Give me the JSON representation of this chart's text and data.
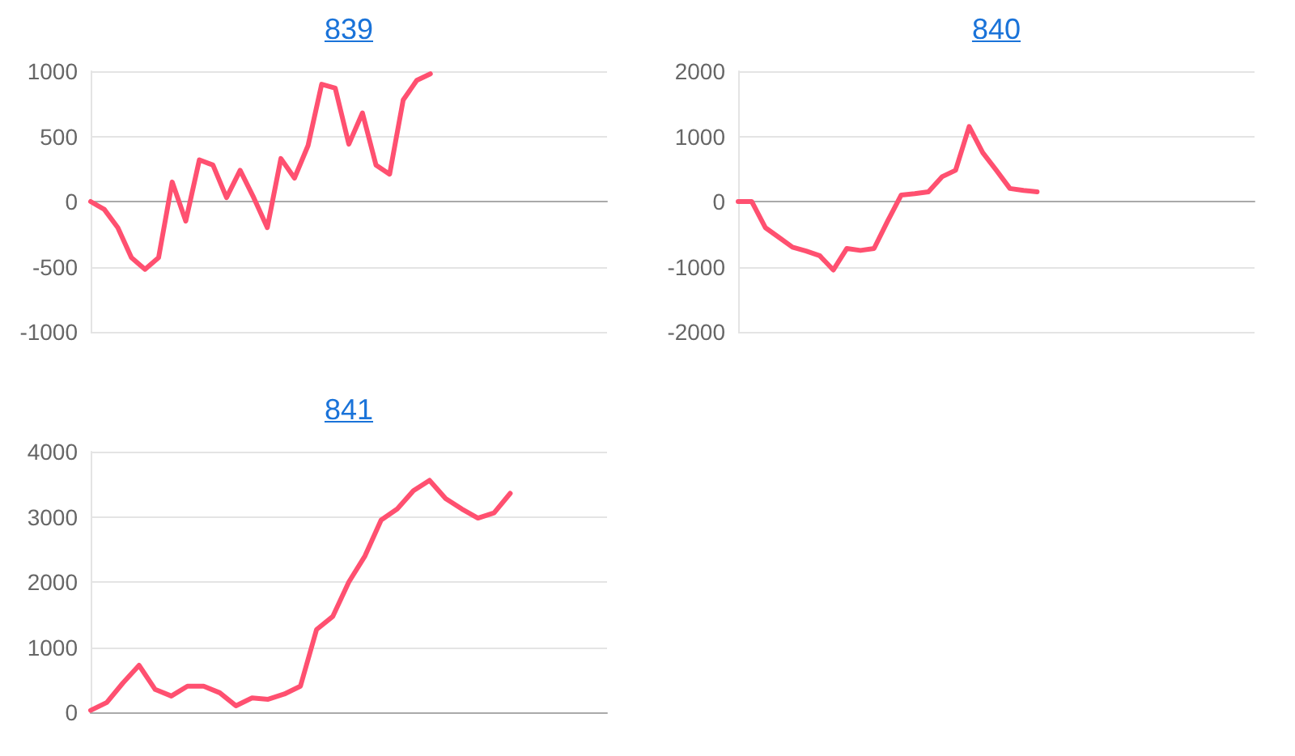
{
  "chart_data": [
    {
      "type": "line",
      "title": "839",
      "color": "#ff5070",
      "grid": "y",
      "ylim": [
        -1000,
        1000
      ],
      "yticks": [
        -1000,
        -500,
        0,
        500,
        1000
      ],
      "categories": [
        null,
        null,
        null,
        null,
        null,
        null,
        null,
        null,
        null,
        null,
        null,
        null,
        null,
        null,
        null,
        null,
        null,
        null,
        null,
        null,
        null,
        null,
        null,
        null,
        null,
        null,
        null,
        null,
        null,
        null,
        null,
        null,
        null,
        null,
        null,
        null,
        null,
        null,
        null
      ],
      "values": [
        0,
        -60,
        -200,
        -430,
        -520,
        -430,
        150,
        -150,
        320,
        280,
        30,
        240,
        30,
        -200,
        330,
        180,
        430,
        900,
        870,
        440,
        680,
        280,
        210,
        780,
        930,
        980,
        null,
        null,
        null,
        null,
        null,
        null,
        null,
        null,
        null,
        null,
        null,
        null,
        null
      ]
    },
    {
      "type": "line",
      "title": "840",
      "color": "#ff5070",
      "grid": "y",
      "ylim": [
        -2000,
        2000
      ],
      "yticks": [
        -2000,
        -1000,
        0,
        1000,
        2000
      ],
      "categories": [
        null,
        null,
        null,
        null,
        null,
        null,
        null,
        null,
        null,
        null,
        null,
        null,
        null,
        null,
        null,
        null,
        null,
        null,
        null,
        null,
        null,
        null,
        null,
        null,
        null,
        null,
        null,
        null,
        null,
        null,
        null,
        null,
        null,
        null,
        null,
        null,
        null,
        null,
        null
      ],
      "values": [
        0,
        0,
        -400,
        -550,
        -700,
        -760,
        -830,
        -1050,
        -720,
        -750,
        -720,
        -300,
        100,
        120,
        150,
        380,
        480,
        1150,
        750,
        480,
        200,
        170,
        150,
        null,
        null,
        null,
        null,
        null,
        null,
        null,
        null,
        null,
        null,
        null,
        null,
        null,
        null,
        null,
        null
      ]
    },
    {
      "type": "line",
      "title": "841",
      "color": "#ff5070",
      "grid": "y",
      "ylim": [
        0,
        4000
      ],
      "yticks": [
        0,
        1000,
        2000,
        3000,
        4000
      ],
      "categories": [
        null,
        null,
        null,
        null,
        null,
        null,
        null,
        null,
        null,
        null,
        null,
        null,
        null,
        null,
        null,
        null,
        null,
        null,
        null,
        null,
        null,
        null,
        null,
        null,
        null,
        null,
        null,
        null,
        null,
        null,
        null,
        null,
        null
      ],
      "values": [
        30,
        150,
        450,
        720,
        350,
        250,
        400,
        400,
        300,
        100,
        220,
        200,
        280,
        400,
        1270,
        1470,
        2000,
        2400,
        2950,
        3120,
        3400,
        3560,
        3280,
        3120,
        2980,
        3060,
        3360,
        null,
        null,
        null,
        null,
        null,
        null
      ]
    }
  ]
}
